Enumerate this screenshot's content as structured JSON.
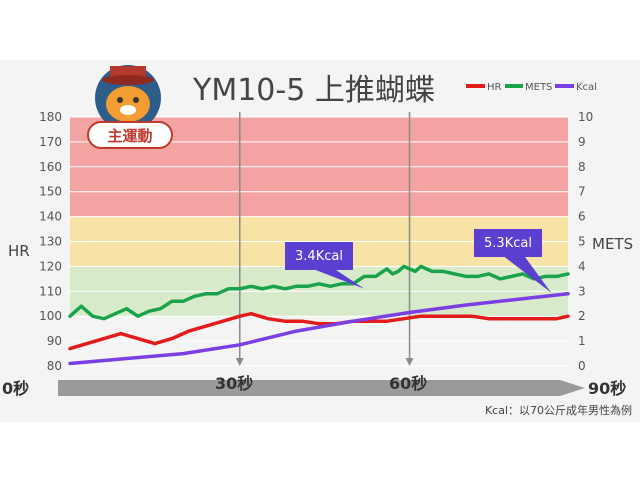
{
  "chart_data": {
    "type": "line",
    "title": "YM10-5 上推蝴蝶",
    "badge": "主運動",
    "ylabel_left": "HR",
    "ylabel_right": "METS",
    "ylim_left": [
      80,
      180
    ],
    "ylim_right": [
      0,
      10
    ],
    "yticks_left": [
      "80",
      "90",
      "100",
      "110",
      "120",
      "130",
      "140",
      "150",
      "160",
      "170",
      "180"
    ],
    "yticks_right": [
      "0",
      "1",
      "2",
      "3",
      "4",
      "5",
      "6",
      "7",
      "8",
      "9",
      "10"
    ],
    "zones": [
      {
        "from": 140,
        "to": 180,
        "color": "#f4a3a3"
      },
      {
        "from": 120,
        "to": 140,
        "color": "#f7e3a6"
      },
      {
        "from": 100,
        "to": 120,
        "color": "#d7ebcb"
      }
    ],
    "x_time_labels": [
      "0秒",
      "30秒",
      "60秒",
      "90秒"
    ],
    "markers": [
      30,
      60
    ],
    "callouts": [
      {
        "text": "3.4Kcal",
        "x": 52,
        "y": 3.1
      },
      {
        "text": "5.3Kcal",
        "x": 85,
        "y": 2.95
      }
    ],
    "legend": [
      "HR",
      "METS",
      "Kcal"
    ],
    "series": [
      {
        "name": "HR",
        "axis": "left",
        "color": "#e31b1b",
        "x": [
          0,
          3,
          6,
          9,
          12,
          15,
          18,
          21,
          24,
          27,
          30,
          32,
          35,
          38,
          41,
          44,
          47,
          50,
          53,
          56,
          59,
          62,
          65,
          68,
          71,
          74,
          77,
          80,
          83,
          86,
          88
        ],
        "values": [
          87,
          89,
          91,
          93,
          91,
          89,
          91,
          94,
          96,
          98,
          100,
          101,
          99,
          98,
          98,
          97,
          97,
          98,
          98,
          98,
          99,
          100,
          100,
          100,
          100,
          99,
          99,
          99,
          99,
          99,
          100
        ]
      },
      {
        "name": "METS",
        "axis": "right",
        "color": "#1aa34a",
        "x": [
          0,
          2,
          4,
          6,
          8,
          10,
          12,
          14,
          16,
          18,
          20,
          22,
          24,
          26,
          28,
          30,
          32,
          34,
          36,
          38,
          40,
          42,
          44,
          46,
          48,
          50,
          52,
          54,
          56,
          57,
          58,
          59,
          60,
          61,
          62,
          63,
          64,
          66,
          68,
          70,
          72,
          74,
          76,
          78,
          80,
          82,
          84,
          86,
          88
        ],
        "values": [
          2.0,
          2.4,
          2.0,
          1.9,
          2.1,
          2.3,
          2.0,
          2.2,
          2.3,
          2.6,
          2.6,
          2.8,
          2.9,
          2.9,
          3.1,
          3.1,
          3.2,
          3.1,
          3.2,
          3.1,
          3.2,
          3.2,
          3.3,
          3.2,
          3.3,
          3.3,
          3.6,
          3.6,
          3.9,
          3.7,
          3.8,
          4.0,
          3.9,
          3.8,
          4.0,
          3.9,
          3.8,
          3.8,
          3.7,
          3.6,
          3.6,
          3.7,
          3.5,
          3.6,
          3.7,
          3.5,
          3.6,
          3.6,
          3.7
        ]
      },
      {
        "name": "Kcal",
        "axis": "right",
        "color": "#7b3fe4",
        "x": [
          0,
          10,
          20,
          30,
          40,
          50,
          60,
          70,
          80,
          88
        ],
        "values": [
          0.1,
          0.3,
          0.5,
          0.85,
          1.4,
          1.8,
          2.15,
          2.45,
          2.7,
          2.9
        ]
      }
    ]
  },
  "footnote": "Kcal：以70公斤成年男性為例"
}
